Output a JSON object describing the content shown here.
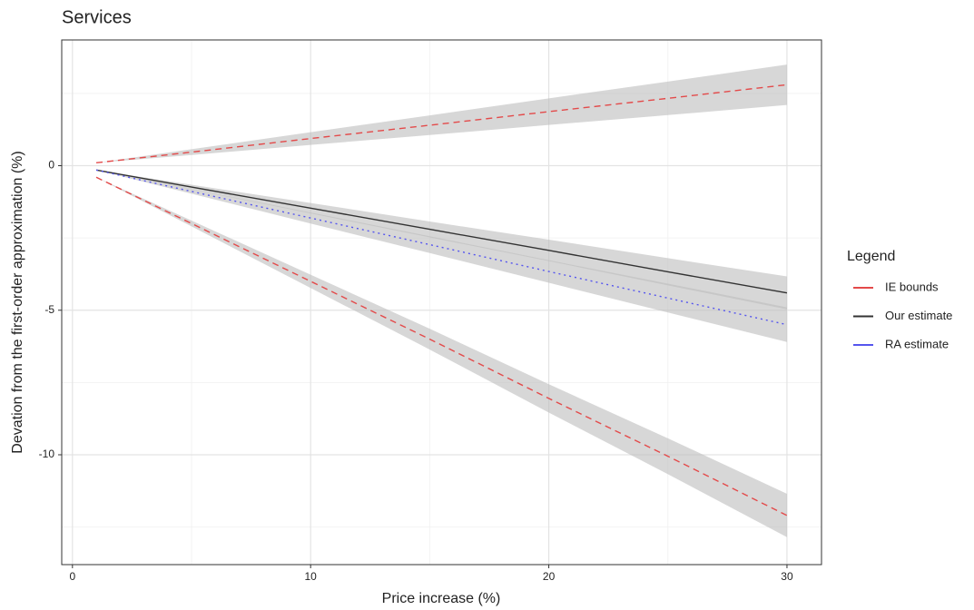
{
  "chart_data": {
    "type": "line",
    "title": "Services",
    "x_label": "Price increase (%)",
    "y_label": "Devation from the first-order approximation (%)",
    "legend_title": "Legend",
    "legend_position": "right",
    "x": [
      1,
      5,
      10,
      15,
      20,
      25,
      30
    ],
    "series": [
      {
        "name": "IE bounds",
        "color": "#e34a4a",
        "linestyle": "dashed",
        "bands": [
          {
            "values": [
              0.1,
              0.47,
              0.94,
              1.4,
              1.87,
              2.33,
              2.8
            ],
            "upper": [
              0.1,
              0.57,
              1.16,
              1.74,
              2.33,
              2.91,
              3.5
            ],
            "lower": [
              0.1,
              0.37,
              0.72,
              1.06,
              1.41,
              1.75,
              2.1
            ]
          },
          {
            "values": [
              -0.4,
              -2.0,
              -4.0,
              -6.0,
              -8.05,
              -10.05,
              -12.1
            ],
            "upper": [
              -0.4,
              -1.9,
              -3.77,
              -5.64,
              -7.56,
              -9.43,
              -11.35
            ],
            "lower": [
              -0.4,
              -2.1,
              -4.23,
              -6.36,
              -8.54,
              -10.67,
              -12.85
            ]
          }
        ]
      },
      {
        "name": "Our estimate",
        "color": "#333333",
        "linestyle": "solid",
        "bands": [
          {
            "values": [
              -0.15,
              -0.74,
              -1.47,
              -2.2,
              -2.93,
              -3.67,
              -4.4
            ],
            "upper": [
              -0.15,
              -0.66,
              -1.29,
              -1.93,
              -2.56,
              -3.2,
              -3.83
            ],
            "lower": [
              -0.15,
              -0.82,
              -1.65,
              -2.48,
              -3.3,
              -4.14,
              -4.97
            ]
          }
        ]
      },
      {
        "name": "RA estimate",
        "color": "#5555ee",
        "linestyle": "dotted",
        "bands": [
          {
            "values": [
              -0.15,
              -0.89,
              -1.81,
              -2.73,
              -3.66,
              -4.58,
              -5.5
            ],
            "upper": [
              -0.15,
              -0.81,
              -1.62,
              -2.44,
              -3.27,
              -4.08,
              -4.9
            ],
            "lower": [
              -0.15,
              -0.97,
              -2.0,
              -3.02,
              -4.05,
              -5.08,
              -6.1
            ]
          }
        ]
      }
    ],
    "band_color": "#bdbdbd",
    "xlim": [
      -0.45,
      31.45
    ],
    "ylim": [
      -13.8,
      4.35
    ],
    "xticks": [
      0,
      10,
      20,
      30
    ],
    "yticks": [
      -10,
      -5,
      0
    ],
    "xminor": [
      5,
      15,
      25
    ],
    "yminor": [
      -12.5,
      -7.5,
      -2.5,
      2.5
    ],
    "grid": true
  }
}
